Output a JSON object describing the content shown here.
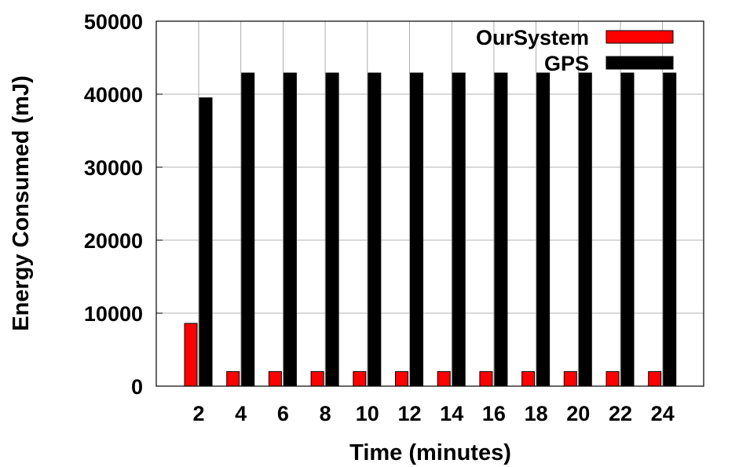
{
  "chart_data": {
    "type": "bar",
    "title": "",
    "xlabel": "Time (minutes)",
    "ylabel": "Energy Consumed (mJ)",
    "categories": [
      "2",
      "4",
      "6",
      "8",
      "10",
      "12",
      "14",
      "16",
      "18",
      "20",
      "22",
      "24"
    ],
    "ylim": [
      0,
      50000
    ],
    "yticks": [
      "0",
      "10000",
      "20000",
      "30000",
      "40000",
      "50000"
    ],
    "grid": true,
    "legend_position": "top-right",
    "series": [
      {
        "name": "OurSystem",
        "color": "#ff0000",
        "values": [
          8600,
          2000,
          2000,
          2000,
          2000,
          2000,
          2000,
          2000,
          2000,
          2000,
          2000,
          2000
        ]
      },
      {
        "name": "GPS",
        "color": "#000000",
        "values": [
          39500,
          42900,
          42900,
          42900,
          42900,
          42900,
          42900,
          42900,
          42900,
          42900,
          42900,
          42900
        ]
      }
    ]
  }
}
